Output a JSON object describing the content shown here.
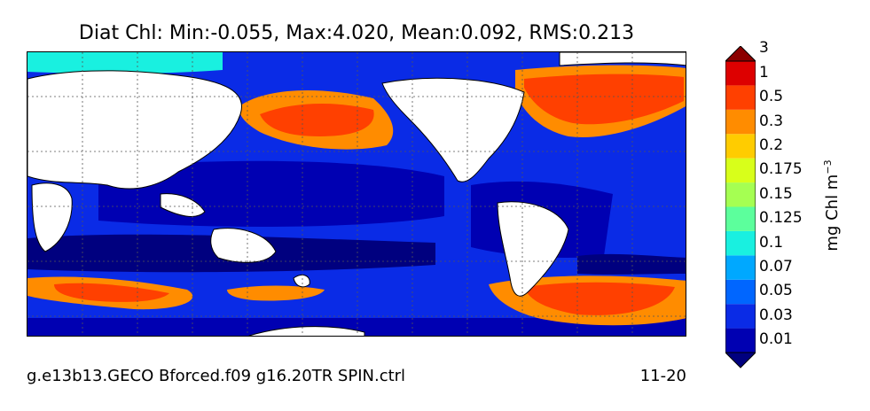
{
  "title": "Diat Chl: Min:-0.055, Max:4.020, Mean:0.092, RMS:0.213",
  "footer": {
    "case_name": "g.e13b13.GECO Bforced.f09 g16.20TR SPIN.ctrl",
    "date": "11-20"
  },
  "colorbar": {
    "units": "mg Chl m",
    "units_exponent": "−3",
    "levels": [
      "0.01",
      "0.03",
      "0.05",
      "0.07",
      "0.1",
      "0.125",
      "0.15",
      "0.175",
      "0.2",
      "0.3",
      "0.5",
      "1",
      "3"
    ],
    "colors": [
      "#00007f",
      "#0000b2",
      "#0a2be6",
      "#0066ff",
      "#00a8ff",
      "#19f0e0",
      "#5cff9c",
      "#a5ff52",
      "#d8ff1a",
      "#ffcc00",
      "#ff8c00",
      "#ff4000",
      "#dd0000",
      "#8b0000"
    ],
    "extend": "both"
  },
  "map": {
    "land_color": "#ffffff",
    "grid": "dotted"
  }
}
